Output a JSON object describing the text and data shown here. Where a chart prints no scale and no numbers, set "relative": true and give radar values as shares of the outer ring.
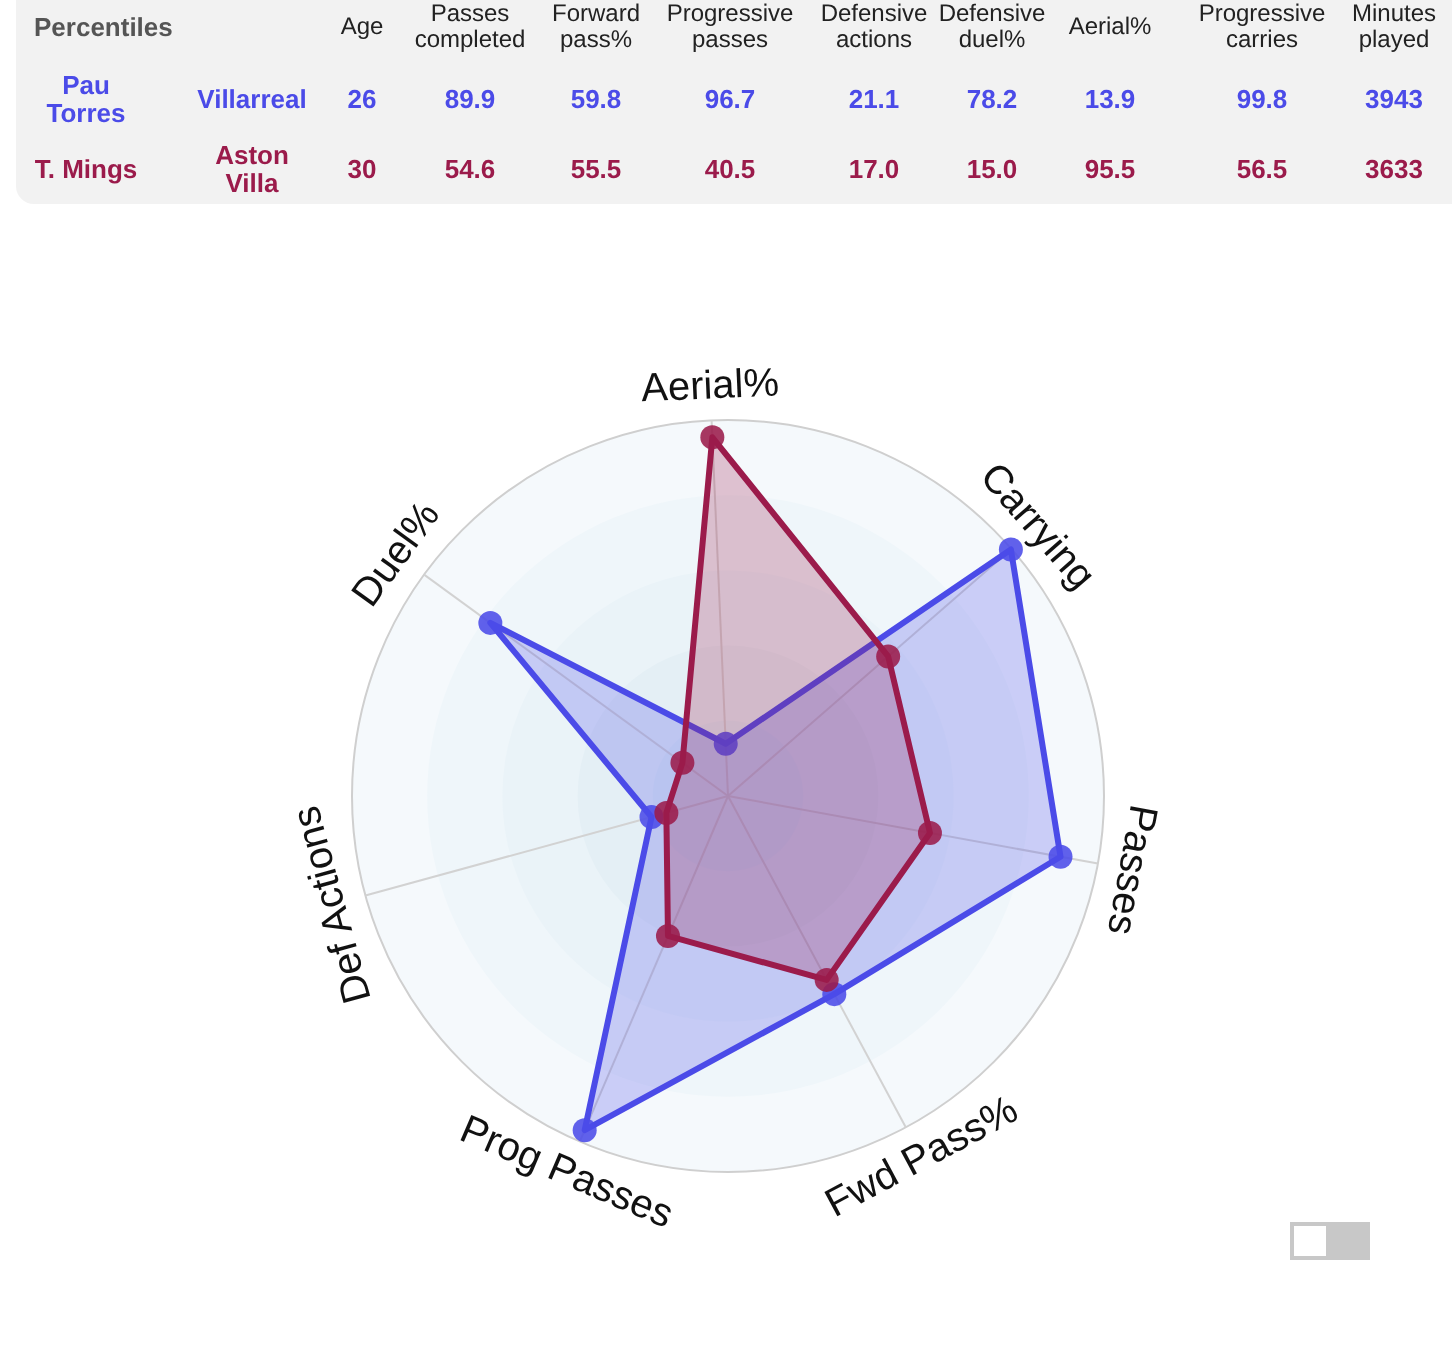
{
  "chart_data": [
    {
      "type": "other",
      "title": "Percentiles",
      "categories": [
        "Age",
        "Passes completed",
        "Forward pass%",
        "Progressive passes",
        "Defensive actions",
        "Defensive duel%",
        "Aerial%",
        "Progressive carries",
        "Minutes played"
      ],
      "series": [
        {
          "name": "Pau Torres",
          "values": [
            26,
            89.9,
            59.8,
            96.7,
            21.1,
            78.2,
            13.9,
            99.8,
            3943
          ],
          "value_labels": [
            "26",
            "89.9",
            "59.8",
            "96.7",
            "21.1",
            "78.2",
            "13.9",
            "99.8",
            "3943"
          ]
        },
        {
          "name": "T. Mings",
          "values": [
            30,
            54.6,
            55.5,
            40.5,
            17.0,
            15.0,
            95.5,
            56.5,
            3633
          ],
          "value_labels": [
            "30",
            "54.6",
            "55.5",
            "40.5",
            "17.0",
            "15.0",
            "95.5",
            "56.5",
            "3633"
          ]
        }
      ],
      "annotations": [
        "Villarreal",
        "Aston Villa"
      ]
    },
    {
      "type": "radar",
      "categories": [
        "Aerial%",
        "Carrying",
        "Passes",
        "Fwd Pass%",
        "Prog Passes",
        "Def Actions",
        "Duel%"
      ],
      "relative": true,
      "grid": true,
      "marker": "circle",
      "series": [
        {
          "color": "#4b4be8",
          "values": [
            0.139,
            0.998,
            0.899,
            0.598,
            0.967,
            0.211,
            0.782
          ]
        },
        {
          "color": "#9b1b4b",
          "values": [
            0.955,
            0.565,
            0.546,
            0.555,
            0.405,
            0.17,
            0.15
          ]
        }
      ]
    }
  ]
}
